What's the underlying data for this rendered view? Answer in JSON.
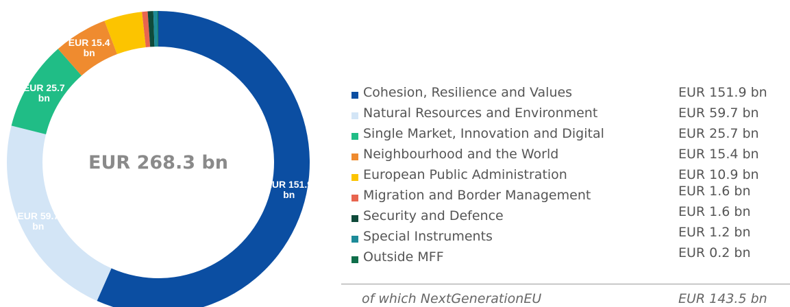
{
  "chart_data": {
    "type": "pie",
    "donut": true,
    "center_label": "EUR 268.3 bn",
    "categories": [
      "Cohesion, Resilience and Values",
      "Natural Resources and Environment",
      "Single Market, Innovation and Digital",
      "Neighbourhood and the World",
      "European Public Administration",
      "Migration and Border Management",
      "Security and Defence",
      "Special Instruments",
      "Outside MFF"
    ],
    "values": [
      151.9,
      59.7,
      25.7,
      15.4,
      10.9,
      1.6,
      1.6,
      1.2,
      0.2
    ],
    "value_labels": [
      "EUR 151.9 bn",
      "EUR 59.7 bn",
      "EUR 25.7 bn",
      "EUR 15.4 bn",
      "EUR 10.9 bn",
      "EUR 1.6 bn",
      "EUR 1.6 bn",
      "EUR 1.2 bn",
      "EUR 0.2 bn"
    ],
    "colors": [
      "#0b4ea2",
      "#d3e5f6",
      "#20bd86",
      "#ef8b2f",
      "#fcc400",
      "#e8654f",
      "#0f4a3a",
      "#1d8b99",
      "#0e6e4a"
    ],
    "note": {
      "label": "of which NextGenerationEU",
      "value": "EUR 143.5 bn"
    }
  }
}
